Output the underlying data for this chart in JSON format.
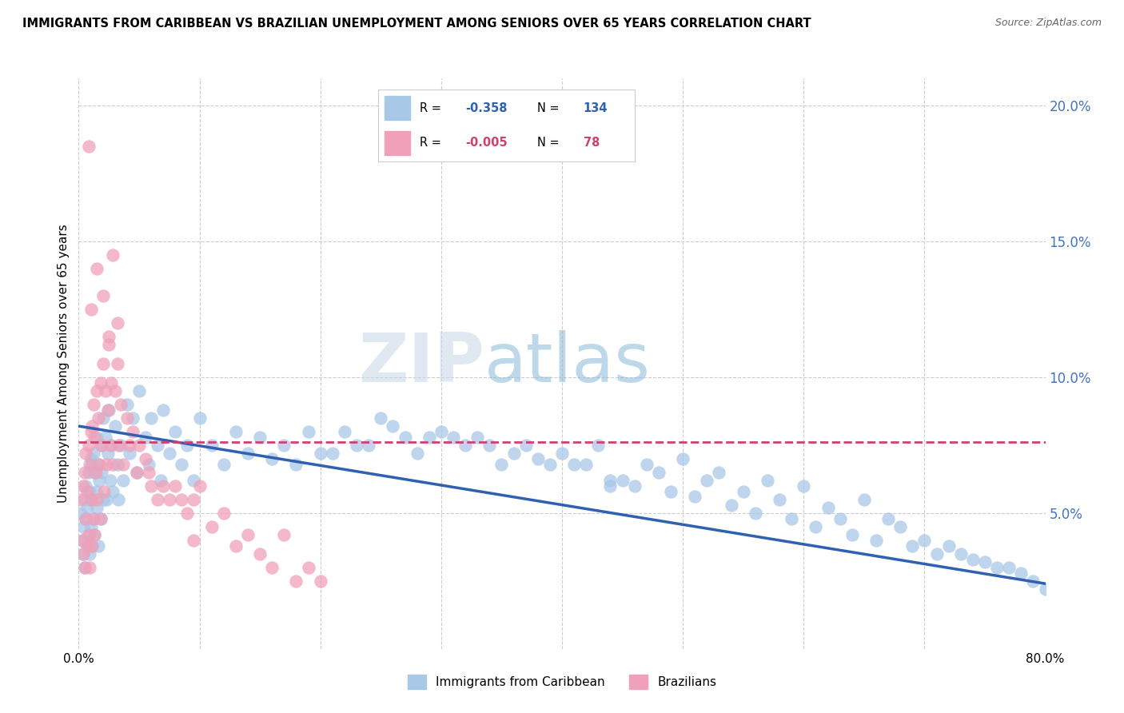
{
  "title": "IMMIGRANTS FROM CARIBBEAN VS BRAZILIAN UNEMPLOYMENT AMONG SENIORS OVER 65 YEARS CORRELATION CHART",
  "source": "Source: ZipAtlas.com",
  "ylabel": "Unemployment Among Seniors over 65 years",
  "xlim": [
    0,
    0.8
  ],
  "ylim": [
    0,
    0.21
  ],
  "xticks": [
    0.0,
    0.1,
    0.2,
    0.3,
    0.4,
    0.5,
    0.6,
    0.7,
    0.8
  ],
  "yticks_right": [
    0.05,
    0.1,
    0.15,
    0.2
  ],
  "ytick_labels_right": [
    "5.0%",
    "10.0%",
    "15.0%",
    "20.0%"
  ],
  "legend_label1": "Immigrants from Caribbean",
  "legend_label2": "Brazilians",
  "blue_color": "#a8c8e8",
  "pink_color": "#f0a0b8",
  "trend_blue": "#3060b0",
  "trend_pink": "#d04070",
  "right_axis_color": "#4472c4",
  "watermark_zip": "ZIP",
  "watermark_atlas": "atlas",
  "blue_r": "-0.358",
  "blue_n": "134",
  "pink_r": "-0.005",
  "pink_n": "78",
  "blue_scatter_x": [
    0.002,
    0.003,
    0.004,
    0.004,
    0.005,
    0.005,
    0.006,
    0.006,
    0.007,
    0.007,
    0.008,
    0.008,
    0.009,
    0.009,
    0.01,
    0.01,
    0.01,
    0.011,
    0.011,
    0.012,
    0.012,
    0.013,
    0.013,
    0.014,
    0.015,
    0.015,
    0.016,
    0.016,
    0.017,
    0.018,
    0.018,
    0.019,
    0.02,
    0.02,
    0.022,
    0.023,
    0.024,
    0.025,
    0.026,
    0.027,
    0.028,
    0.03,
    0.032,
    0.033,
    0.035,
    0.037,
    0.04,
    0.042,
    0.045,
    0.048,
    0.05,
    0.055,
    0.058,
    0.06,
    0.065,
    0.068,
    0.07,
    0.075,
    0.08,
    0.085,
    0.09,
    0.095,
    0.1,
    0.11,
    0.12,
    0.13,
    0.14,
    0.15,
    0.16,
    0.17,
    0.18,
    0.19,
    0.2,
    0.22,
    0.23,
    0.25,
    0.27,
    0.28,
    0.3,
    0.32,
    0.33,
    0.35,
    0.37,
    0.38,
    0.4,
    0.42,
    0.43,
    0.45,
    0.47,
    0.48,
    0.5,
    0.52,
    0.53,
    0.55,
    0.57,
    0.58,
    0.6,
    0.62,
    0.63,
    0.65,
    0.67,
    0.68,
    0.7,
    0.72,
    0.73,
    0.75,
    0.77,
    0.78,
    0.79,
    0.8,
    0.24,
    0.26,
    0.29,
    0.31,
    0.34,
    0.36,
    0.39,
    0.41,
    0.44,
    0.46,
    0.49,
    0.51,
    0.54,
    0.56,
    0.59,
    0.61,
    0.64,
    0.66,
    0.69,
    0.71,
    0.74,
    0.76,
    0.21,
    0.44
  ],
  "blue_scatter_y": [
    0.05,
    0.04,
    0.035,
    0.045,
    0.03,
    0.055,
    0.06,
    0.048,
    0.038,
    0.052,
    0.065,
    0.042,
    0.058,
    0.035,
    0.07,
    0.055,
    0.045,
    0.068,
    0.038,
    0.072,
    0.048,
    0.065,
    0.042,
    0.058,
    0.078,
    0.052,
    0.068,
    0.038,
    0.062,
    0.075,
    0.048,
    0.065,
    0.085,
    0.055,
    0.078,
    0.055,
    0.072,
    0.088,
    0.062,
    0.075,
    0.058,
    0.082,
    0.068,
    0.055,
    0.075,
    0.062,
    0.09,
    0.072,
    0.085,
    0.065,
    0.095,
    0.078,
    0.068,
    0.085,
    0.075,
    0.062,
    0.088,
    0.072,
    0.08,
    0.068,
    0.075,
    0.062,
    0.085,
    0.075,
    0.068,
    0.08,
    0.072,
    0.078,
    0.07,
    0.075,
    0.068,
    0.08,
    0.072,
    0.08,
    0.075,
    0.085,
    0.078,
    0.072,
    0.08,
    0.075,
    0.078,
    0.068,
    0.075,
    0.07,
    0.072,
    0.068,
    0.075,
    0.062,
    0.068,
    0.065,
    0.07,
    0.062,
    0.065,
    0.058,
    0.062,
    0.055,
    0.06,
    0.052,
    0.048,
    0.055,
    0.048,
    0.045,
    0.04,
    0.038,
    0.035,
    0.032,
    0.03,
    0.028,
    0.025,
    0.022,
    0.075,
    0.082,
    0.078,
    0.078,
    0.075,
    0.072,
    0.068,
    0.068,
    0.062,
    0.06,
    0.058,
    0.056,
    0.053,
    0.05,
    0.048,
    0.045,
    0.042,
    0.04,
    0.038,
    0.035,
    0.033,
    0.03,
    0.072,
    0.06
  ],
  "pink_scatter_x": [
    0.002,
    0.003,
    0.004,
    0.004,
    0.005,
    0.005,
    0.006,
    0.006,
    0.007,
    0.007,
    0.008,
    0.008,
    0.009,
    0.009,
    0.01,
    0.01,
    0.011,
    0.011,
    0.012,
    0.012,
    0.013,
    0.013,
    0.014,
    0.015,
    0.015,
    0.016,
    0.017,
    0.018,
    0.018,
    0.019,
    0.02,
    0.021,
    0.022,
    0.023,
    0.024,
    0.025,
    0.026,
    0.027,
    0.028,
    0.03,
    0.032,
    0.033,
    0.035,
    0.037,
    0.04,
    0.042,
    0.045,
    0.048,
    0.05,
    0.055,
    0.058,
    0.06,
    0.065,
    0.07,
    0.075,
    0.08,
    0.085,
    0.09,
    0.095,
    0.1,
    0.11,
    0.12,
    0.13,
    0.14,
    0.15,
    0.16,
    0.17,
    0.18,
    0.19,
    0.2,
    0.095,
    0.028,
    0.032,
    0.015,
    0.02,
    0.025,
    0.01,
    0.008
  ],
  "pink_scatter_y": [
    0.055,
    0.04,
    0.035,
    0.06,
    0.03,
    0.065,
    0.072,
    0.048,
    0.038,
    0.058,
    0.075,
    0.042,
    0.068,
    0.03,
    0.08,
    0.055,
    0.082,
    0.038,
    0.09,
    0.048,
    0.078,
    0.042,
    0.065,
    0.095,
    0.055,
    0.085,
    0.068,
    0.098,
    0.048,
    0.075,
    0.105,
    0.058,
    0.095,
    0.068,
    0.088,
    0.112,
    0.075,
    0.098,
    0.068,
    0.095,
    0.105,
    0.075,
    0.09,
    0.068,
    0.085,
    0.075,
    0.08,
    0.065,
    0.075,
    0.07,
    0.065,
    0.06,
    0.055,
    0.06,
    0.055,
    0.06,
    0.055,
    0.05,
    0.055,
    0.06,
    0.045,
    0.05,
    0.038,
    0.042,
    0.035,
    0.03,
    0.042,
    0.025,
    0.03,
    0.025,
    0.04,
    0.145,
    0.12,
    0.14,
    0.13,
    0.115,
    0.125,
    0.185
  ],
  "trend_blue_x0": 0.0,
  "trend_blue_y0": 0.082,
  "trend_blue_x1": 0.8,
  "trend_blue_y1": 0.024,
  "trend_pink_y": 0.076
}
